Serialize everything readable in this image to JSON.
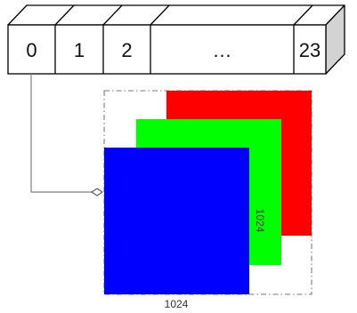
{
  "array": {
    "cells": [
      "0",
      "1",
      "2",
      "…",
      "23"
    ]
  },
  "image": {
    "width_label": "1024",
    "height_label": "1024"
  },
  "colors": {
    "outline": "#000000",
    "box_face": "#ffffff",
    "box_side": "#d3d3d3",
    "red": "#ff0000",
    "green": "#00ff00",
    "blue": "#0000ff",
    "dash": "#7a7a7a",
    "connector": "#808080"
  }
}
